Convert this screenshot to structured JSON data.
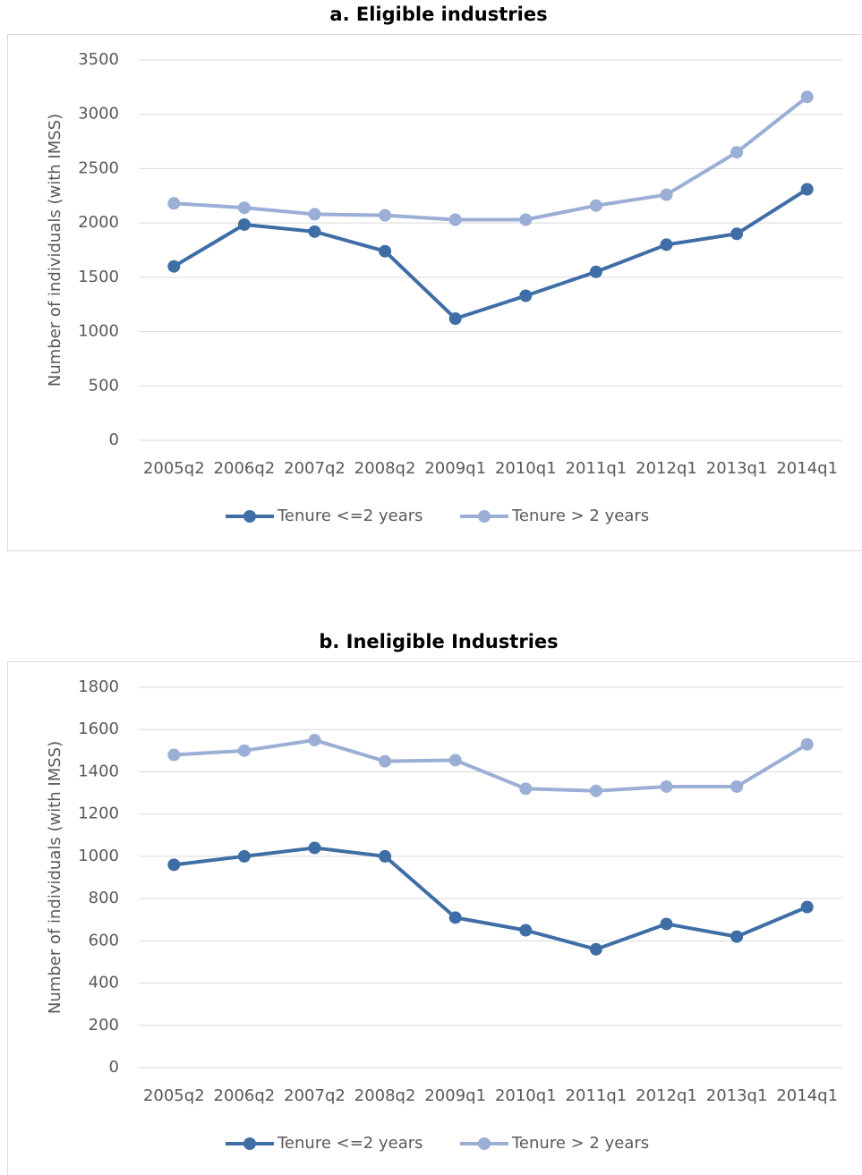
{
  "chart_data": [
    {
      "type": "line",
      "title": "a. Eligible industries",
      "y_label": "Number of individuals (with IMSS)",
      "categories": [
        "2005q2",
        "2006q2",
        "2007q2",
        "2008q2",
        "2009q1",
        "2010q1",
        "2011q1",
        "2012q1",
        "2013q1",
        "2014q1"
      ],
      "series": [
        {
          "name": "Tenure <=2 years",
          "color": "#3f6ea6",
          "values": [
            1600,
            1985,
            1920,
            1740,
            1120,
            1330,
            1550,
            1800,
            1900,
            2310
          ]
        },
        {
          "name": "Tenure > 2 years",
          "color": "#9aaed6",
          "values": [
            2180,
            2140,
            2080,
            2070,
            2030,
            2030,
            2160,
            2260,
            2650,
            3160
          ]
        }
      ],
      "ylim": [
        0,
        3500
      ],
      "yticks": [
        0,
        500,
        1000,
        1500,
        2000,
        2500,
        3000,
        3500
      ],
      "grid": true,
      "legend": "bottom"
    },
    {
      "type": "line",
      "title": "b. Ineligible Industries",
      "y_label": "Number of individuals (with IMSS)",
      "categories": [
        "2005q2",
        "2006q2",
        "2007q2",
        "2008q2",
        "2009q1",
        "2010q1",
        "2011q1",
        "2012q1",
        "2013q1",
        "2014q1"
      ],
      "series": [
        {
          "name": "Tenure <=2 years",
          "color": "#3f6ea6",
          "values": [
            960,
            1000,
            1040,
            1000,
            710,
            650,
            560,
            680,
            620,
            760
          ]
        },
        {
          "name": "Tenure > 2 years",
          "color": "#9aaed6",
          "values": [
            1480,
            1500,
            1550,
            1450,
            1455,
            1320,
            1310,
            1330,
            1330,
            1530
          ]
        }
      ],
      "ylim": [
        0,
        1800
      ],
      "yticks": [
        0,
        200,
        400,
        600,
        800,
        1000,
        1200,
        1400,
        1600,
        1800
      ],
      "grid": true,
      "legend": "bottom"
    }
  ]
}
